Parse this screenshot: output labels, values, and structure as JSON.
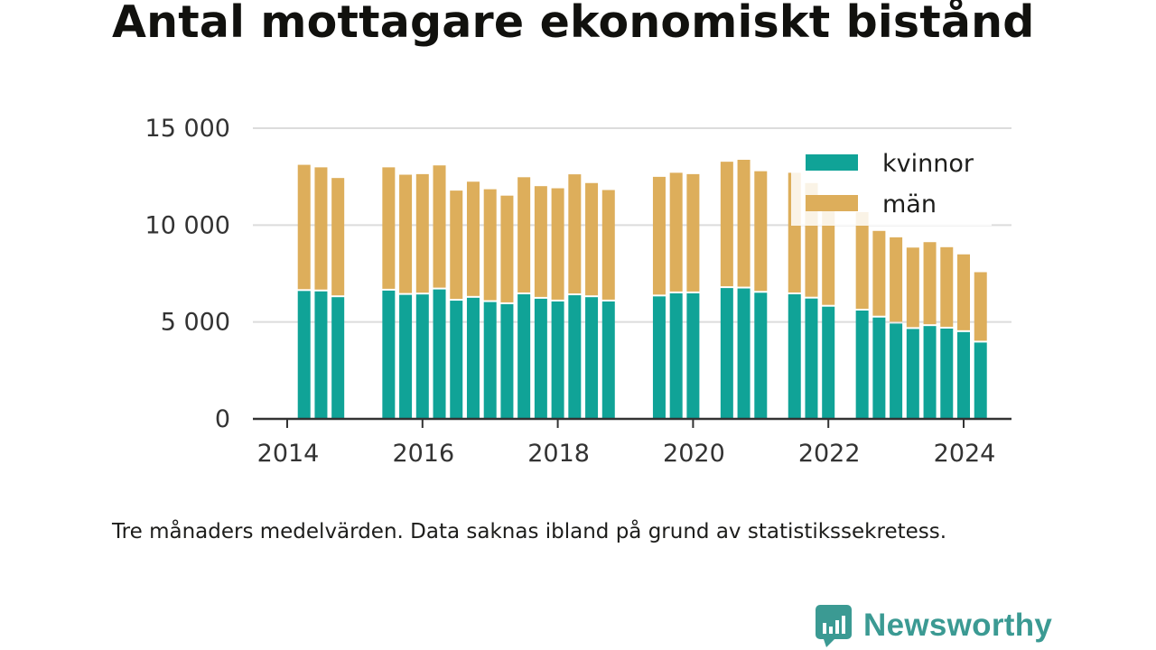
{
  "title": "Antal mottagare ekonomiskt bistånd",
  "note": "Tre månaders medelvärden. Data saknas ibland på grund av statistikssekretess.",
  "brand": {
    "name": "Newsworthy"
  },
  "colors": {
    "kvinnor": "#10a397",
    "man": "#ddae5b",
    "grid": "#dcdcdc",
    "axis": "#333333",
    "brand": "#3b9a93"
  },
  "chart_data": {
    "type": "bar",
    "stacked": true,
    "x_scale": "year-fraction",
    "x_ticks": [
      "2014",
      "2016",
      "2018",
      "2020",
      "2022",
      "2024"
    ],
    "y_ticks": [
      "0",
      "5 000",
      "10 000",
      "15 000"
    ],
    "ylim": [
      0,
      15000
    ],
    "xlim": [
      2013.8,
      2024.7
    ],
    "grid": "horizontal",
    "legend": "top-right",
    "x": [
      2014.25,
      2014.5,
      2014.75,
      2015.5,
      2015.75,
      2016.0,
      2016.25,
      2016.5,
      2016.75,
      2017.0,
      2017.25,
      2017.5,
      2017.75,
      2018.0,
      2018.25,
      2018.5,
      2018.75,
      2019.5,
      2019.75,
      2020.0,
      2020.5,
      2020.75,
      2021.0,
      2021.5,
      2021.75,
      2022.0,
      2022.5,
      2022.75,
      2023.0,
      2023.25,
      2023.5,
      2023.75,
      2024.0,
      2024.25
    ],
    "series": [
      {
        "name": "kvinnor",
        "values": [
          6600,
          6580,
          6280,
          6620,
          6400,
          6420,
          6680,
          6100,
          6250,
          6030,
          5920,
          6430,
          6200,
          6060,
          6380,
          6280,
          6060,
          6320,
          6480,
          6480,
          6750,
          6730,
          6510,
          6430,
          6210,
          5790,
          5590,
          5230,
          4920,
          4640,
          4790,
          4660,
          4480,
          3940
        ]
      },
      {
        "name": "män",
        "values": [
          6510,
          6400,
          6150,
          6360,
          6200,
          6210,
          6400,
          5680,
          5990,
          5820,
          5600,
          6040,
          5810,
          5840,
          6240,
          5890,
          5750,
          6170,
          6220,
          6150,
          6520,
          6640,
          6270,
          6270,
          5960,
          5230,
          5080,
          4470,
          4450,
          4200,
          4330,
          4200,
          4010,
          3630
        ]
      }
    ]
  }
}
